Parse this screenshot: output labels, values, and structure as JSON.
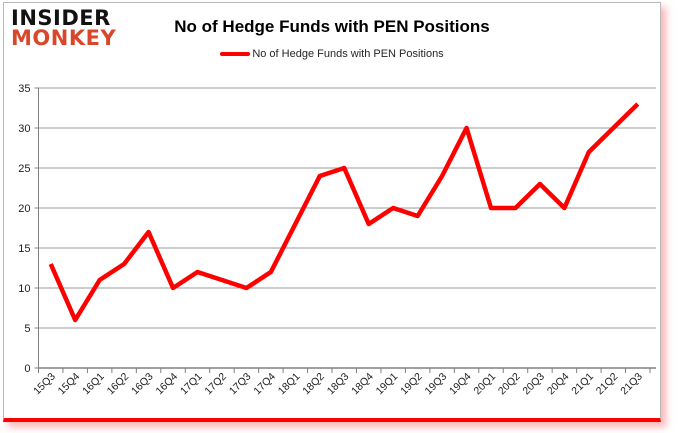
{
  "header": {
    "logo_line1": "INSIDER",
    "logo_line2": "MONKEY",
    "title": "No of Hedge Funds with PEN Positions"
  },
  "legend": {
    "label": "No of Hedge Funds with PEN Positions"
  },
  "colors": {
    "line": "#fe0000",
    "logo_red": "#d9472b",
    "grid": "#999999",
    "axis": "#808080",
    "tick_label": "#1f1f1f",
    "border_bottom": "#fe0000"
  },
  "chart_data": {
    "type": "line",
    "title": "No of Hedge Funds with PEN Positions",
    "series": [
      {
        "name": "No of Hedge Funds with PEN Positions",
        "values": [
          13,
          6,
          11,
          13,
          17,
          10,
          12,
          11,
          10,
          12,
          18,
          24,
          25,
          18,
          20,
          19,
          24,
          30,
          20,
          20,
          23,
          20,
          27,
          30,
          33
        ]
      }
    ],
    "categories": [
      "15Q3",
      "15Q4",
      "16Q1",
      "16Q2",
      "16Q3",
      "16Q4",
      "17Q1",
      "17Q2",
      "17Q3",
      "17Q4",
      "18Q1",
      "18Q2",
      "18Q3",
      "18Q4",
      "19Q1",
      "19Q2",
      "19Q3",
      "19Q4",
      "20Q1",
      "20Q2",
      "20Q3",
      "20Q4",
      "21Q1",
      "21Q2",
      "21Q3"
    ],
    "xlabel": "",
    "ylabel": "",
    "ylim": [
      0,
      35
    ],
    "yticks": [
      0,
      5,
      10,
      15,
      20,
      25,
      30,
      35
    ],
    "grid": "horizontal",
    "legend_position": "top-center",
    "x_label_rotation_deg": -45
  }
}
